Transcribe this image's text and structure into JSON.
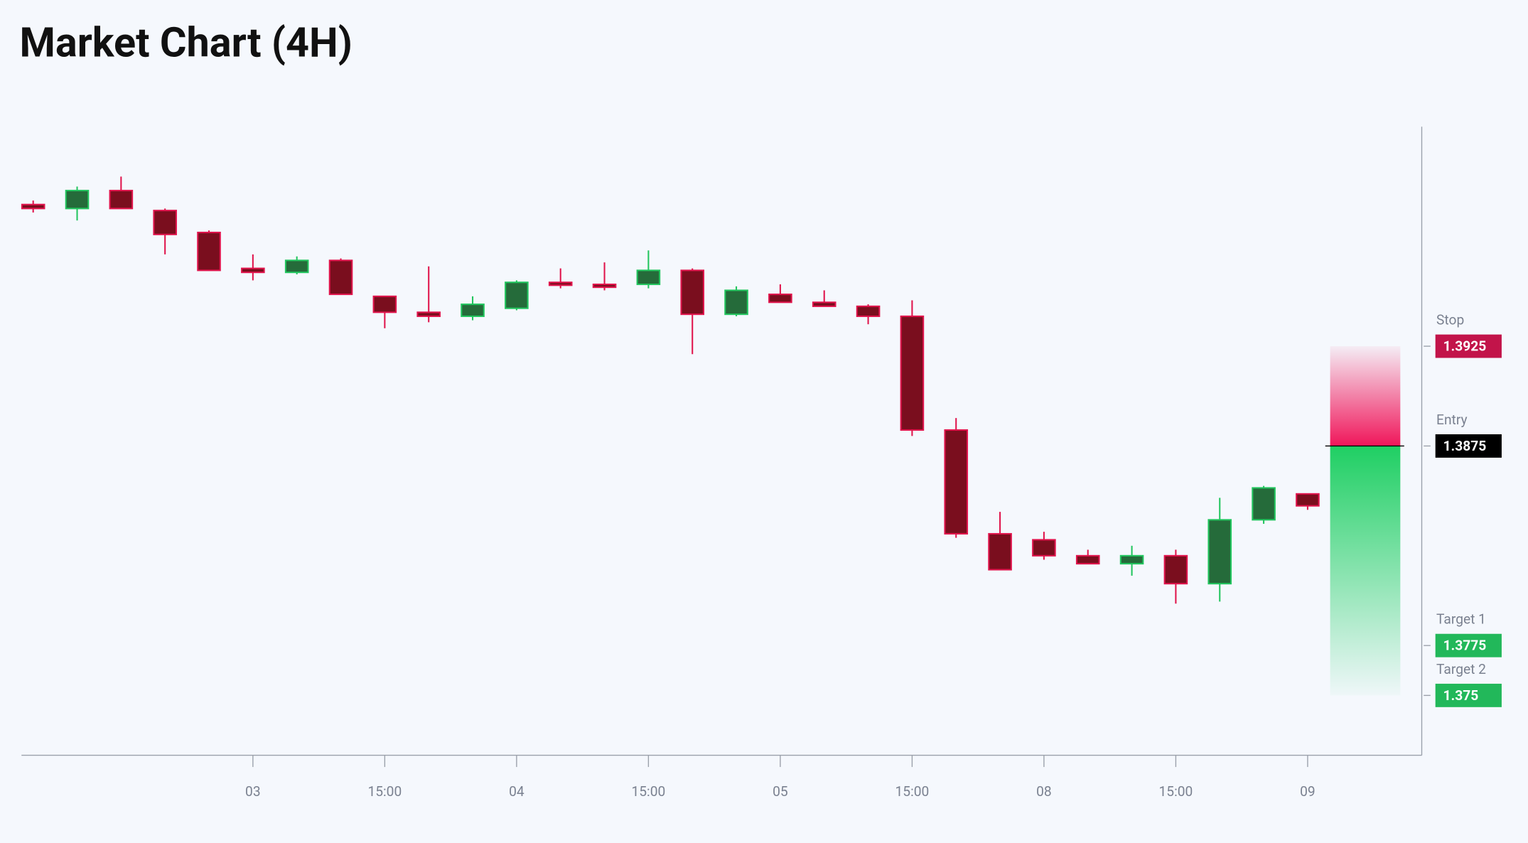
{
  "chart_data": {
    "type": "candlestick",
    "title": "Market Chart (4H)",
    "categories": [
      null,
      null,
      null,
      null,
      null,
      "03",
      null,
      null,
      "15:00",
      null,
      null,
      "04",
      null,
      null,
      "15:00",
      null,
      null,
      "05",
      null,
      null,
      "15:00",
      null,
      null,
      "08",
      null,
      null,
      "15:00",
      null,
      null,
      "09"
    ],
    "open": [
      1.3996,
      1.3994,
      1.4003,
      1.3993,
      1.3982,
      1.3964,
      1.3962,
      1.3968,
      1.395,
      1.3942,
      1.394,
      1.3944,
      1.3957,
      1.3956,
      1.3956,
      1.3963,
      1.3941,
      1.3951,
      1.3947,
      1.3945,
      1.394,
      1.3883,
      1.3831,
      1.3828,
      1.382,
      1.3816,
      1.382,
      1.3806,
      1.3838,
      1.3851
    ],
    "high": [
      1.3998,
      1.4005,
      1.401,
      1.3994,
      1.3983,
      1.3971,
      1.397,
      1.3969,
      1.395,
      1.3965,
      1.395,
      1.3958,
      1.3964,
      1.3967,
      1.3973,
      1.3964,
      1.3955,
      1.3956,
      1.3953,
      1.3946,
      1.3948,
      1.3889,
      1.3842,
      1.3832,
      1.3823,
      1.3825,
      1.3823,
      1.3849,
      1.3855,
      1.3851
    ],
    "low": [
      1.3992,
      1.3988,
      1.3994,
      1.3971,
      1.3963,
      1.3958,
      1.3961,
      1.3951,
      1.3934,
      1.3937,
      1.3938,
      1.3943,
      1.3954,
      1.3953,
      1.3954,
      1.3921,
      1.394,
      1.3947,
      1.3945,
      1.3936,
      1.388,
      1.3829,
      1.3813,
      1.3818,
      1.3816,
      1.381,
      1.3796,
      1.3797,
      1.3836,
      1.3843
    ],
    "close": [
      1.3994,
      1.4003,
      1.3994,
      1.3981,
      1.3963,
      1.3962,
      1.3968,
      1.3951,
      1.3942,
      1.394,
      1.3946,
      1.3957,
      1.3956,
      1.3955,
      1.3963,
      1.3941,
      1.3953,
      1.3947,
      1.3945,
      1.394,
      1.3883,
      1.3831,
      1.3813,
      1.382,
      1.3816,
      1.382,
      1.3806,
      1.3838,
      1.3854,
      1.3845
    ],
    "up_color": "#256b3a",
    "up_border": "#22c55e",
    "down_color": "#7a0e1e",
    "down_border": "#e0144c",
    "ylim": [
      1.372,
      1.4035
    ],
    "levels": [
      {
        "name": "Stop",
        "value": 1.3925,
        "color": "#c2144a"
      },
      {
        "name": "Entry",
        "value": 1.3875,
        "color": "#000000"
      },
      {
        "name": "Target 1",
        "value": 1.3775,
        "color": "#22b85a"
      },
      {
        "name": "Target 2",
        "value": 1.375,
        "color": "#22b85a"
      }
    ]
  }
}
